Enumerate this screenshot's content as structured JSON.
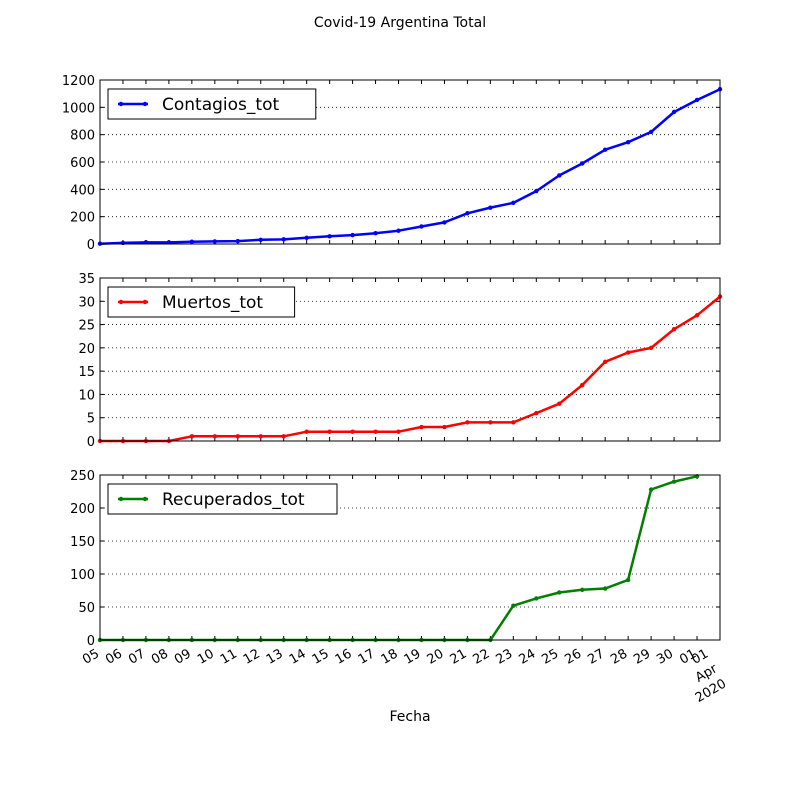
{
  "figure": {
    "title": "Covid-19 Argentina Total",
    "xlabel": "Fecha"
  },
  "chart_data": {
    "type": "line",
    "x_tick_labels": [
      "05",
      "06",
      "07",
      "08",
      "09",
      "10",
      "11",
      "12",
      "13",
      "14",
      "15",
      "16",
      "17",
      "18",
      "19",
      "20",
      "21",
      "22",
      "23",
      "24",
      "25",
      "26",
      "27",
      "28",
      "29",
      "30",
      "01",
      "Apr",
      "2020"
    ],
    "dates": [
      "2020-03-05",
      "2020-03-06",
      "2020-03-07",
      "2020-03-08",
      "2020-03-09",
      "2020-03-10",
      "2020-03-11",
      "2020-03-12",
      "2020-03-13",
      "2020-03-14",
      "2020-03-15",
      "2020-03-16",
      "2020-03-17",
      "2020-03-18",
      "2020-03-19",
      "2020-03-20",
      "2020-03-21",
      "2020-03-22",
      "2020-03-23",
      "2020-03-24",
      "2020-03-25",
      "2020-03-26",
      "2020-03-27",
      "2020-03-28",
      "2020-03-29",
      "2020-03-30",
      "2020-03-31",
      "2020-04-01"
    ],
    "panels": [
      {
        "ylim": [
          0,
          1200
        ],
        "yticks": [
          0,
          200,
          400,
          600,
          800,
          1000,
          1200
        ],
        "legend_position": "top-left",
        "grid": "y-dotted",
        "series": [
          {
            "name": "Contagios_tot",
            "color": "#0000ff",
            "values": [
              2,
              8,
              12,
              12,
              17,
              19,
              21,
              31,
              34,
              45,
              56,
              65,
              79,
              97,
              128,
              158,
              225,
              266,
              301,
              387,
              502,
              589,
              690,
              745,
              820,
              966,
              1054,
              1133
            ]
          }
        ]
      },
      {
        "ylim": [
          0,
          35
        ],
        "yticks": [
          0,
          5,
          10,
          15,
          20,
          25,
          30,
          35
        ],
        "legend_position": "top-left",
        "grid": "y-dotted",
        "series": [
          {
            "name": "Muertos_tot",
            "color": "#ff0000",
            "values": [
              0,
              0,
              0,
              0,
              1,
              1,
              1,
              1,
              1,
              2,
              2,
              2,
              2,
              2,
              3,
              3,
              4,
              4,
              4,
              6,
              8,
              12,
              17,
              19,
              20,
              24,
              27,
              31
            ]
          }
        ]
      },
      {
        "ylim": [
          0,
          250
        ],
        "yticks": [
          0,
          50,
          100,
          150,
          200,
          250
        ],
        "legend_position": "top-left",
        "grid": "y-dotted",
        "series": [
          {
            "name": "Recuperados_tot",
            "color": "#008000",
            "values": [
              0,
              0,
              0,
              0,
              0,
              0,
              0,
              0,
              0,
              0,
              0,
              0,
              0,
              0,
              0,
              0,
              0,
              0,
              52,
              63,
              72,
              76,
              78,
              91,
              228,
              240,
              248,
              null
            ]
          }
        ]
      }
    ]
  }
}
